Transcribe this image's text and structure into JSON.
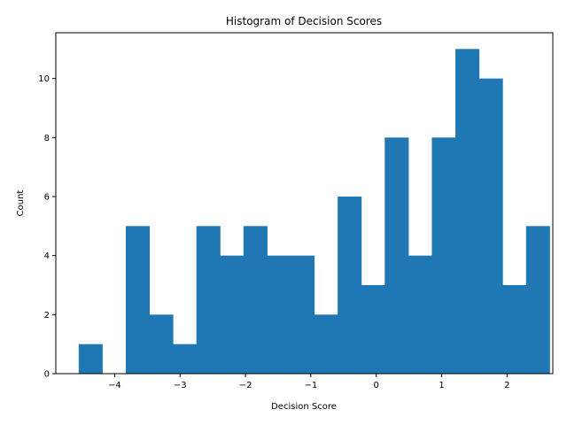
{
  "chart_data": {
    "type": "bar",
    "title": "Histogram of Decision Scores",
    "xlabel": "Decision Score",
    "ylabel": "Count",
    "bin_edges": [
      -4.55,
      -4.19,
      -3.83,
      -3.47,
      -3.11,
      -2.75,
      -2.39,
      -2.03,
      -1.67,
      -1.31,
      -0.95,
      -0.59,
      -0.23,
      0.13,
      0.49,
      0.85,
      1.21,
      1.57,
      1.93,
      2.29,
      2.65
    ],
    "values": [
      1,
      0,
      5,
      2,
      1,
      5,
      4,
      5,
      4,
      4,
      2,
      6,
      3,
      8,
      4,
      8,
      11,
      10,
      3,
      5
    ],
    "xlim": [
      -4.9,
      2.7
    ],
    "ylim": [
      0,
      11.55
    ],
    "xticks": [
      -4,
      -3,
      -2,
      -1,
      0,
      1,
      2
    ],
    "xtick_labels": [
      "−4",
      "−3",
      "−2",
      "−1",
      "0",
      "1",
      "2"
    ],
    "yticks": [
      0,
      2,
      4,
      6,
      8,
      10
    ],
    "ytick_labels": [
      "0",
      "2",
      "4",
      "6",
      "8",
      "10"
    ],
    "bar_color": "#1f77b4",
    "grid": false,
    "legend": "none"
  }
}
